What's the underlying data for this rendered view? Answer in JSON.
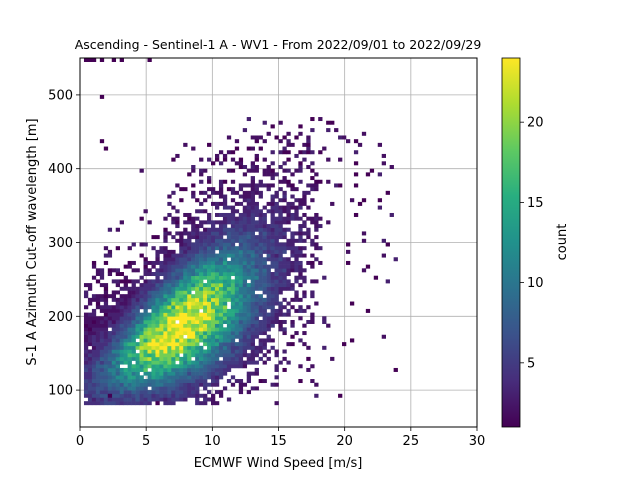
{
  "chart_data": {
    "type": "heatmap",
    "title": "Ascending - Sentinel-1 A - WV1 - From 2022/09/01 to 2022/09/29",
    "xlabel": "ECMWF Wind Speed [m/s]",
    "ylabel": "S-1 A Azimuth Cut-off wavelength [m]",
    "xlim": [
      0,
      30
    ],
    "ylim": [
      50,
      550
    ],
    "xticks": [
      0,
      5,
      10,
      15,
      20,
      25,
      30
    ],
    "yticks": [
      100,
      200,
      300,
      400,
      500
    ],
    "grid": true,
    "colormap": "viridis",
    "colorbar": {
      "label": "count",
      "range": [
        1,
        24
      ],
      "ticks": [
        5,
        10,
        15,
        20
      ]
    },
    "bin_size": {
      "x": 0.3,
      "y": 5
    },
    "density_core": {
      "center": [
        7.5,
        185
      ],
      "slope_m_per_ms": 11,
      "peak_count": 23
    }
  }
}
